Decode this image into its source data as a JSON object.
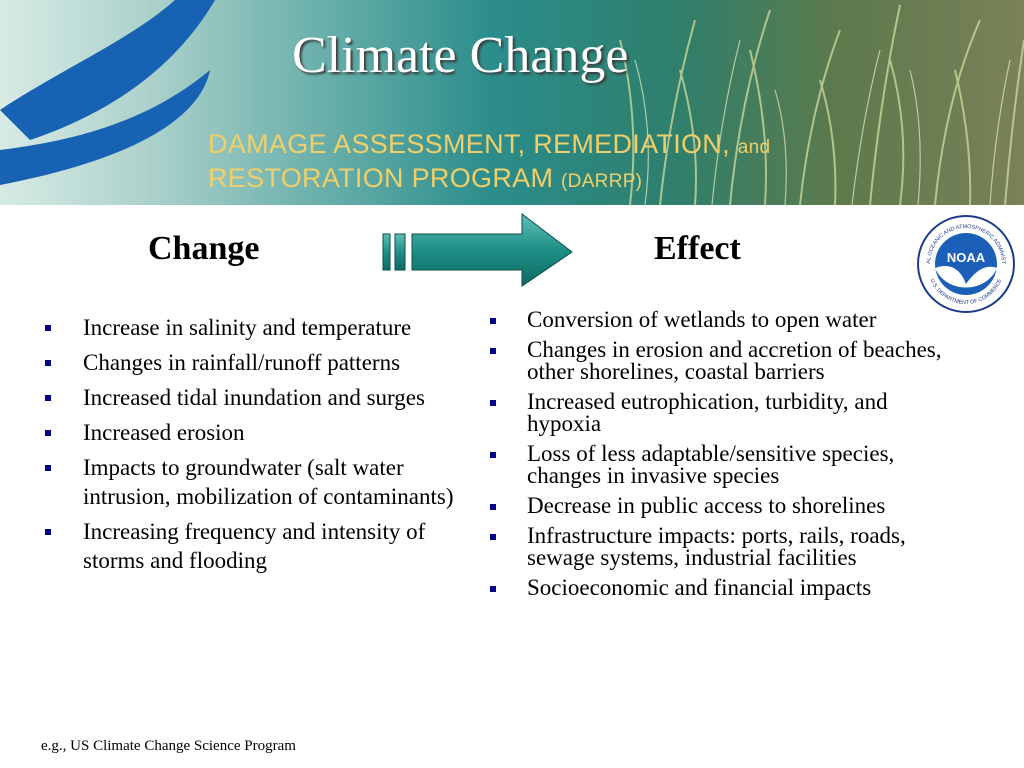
{
  "title": "Climate Change",
  "program": {
    "line1": "DAMAGE ASSESSMENT, REMEDIATION,",
    "line1_suffix": "and",
    "line2": "RESTORATION PROGRAM",
    "line2_suffix": "(DARRP)"
  },
  "colors": {
    "accent_teal": "#1e8f86",
    "program_text": "#f0cf6a",
    "bullet": "#00008b"
  },
  "headings": {
    "change": "Change",
    "effect": "Effect"
  },
  "logo": {
    "center_text": "NOAA",
    "ring_top": "NATIONAL OCEANIC AND ATMOSPHERIC ADMINISTRATION",
    "ring_bottom": "U.S. DEPARTMENT OF COMMERCE"
  },
  "change_items": [
    "Increase in salinity and temperature",
    "Changes in rainfall/runoff patterns",
    "Increased tidal inundation and surges",
    "Increased erosion",
    "Impacts to groundwater (salt water intrusion, mobilization of contaminants)",
    "Increasing frequency and intensity of storms and flooding"
  ],
  "effect_items": [
    "Conversion of wetlands to open water",
    "Changes in erosion and accretion of beaches, other shorelines, coastal barriers",
    "Increased eutrophication, turbidity, and hypoxia",
    "Loss of less adaptable/sensitive species, changes in invasive species",
    "Decrease in public access to shorelines",
    "Infrastructure impacts: ports, rails, roads, sewage systems, industrial facilities",
    "Socioeconomic and financial impacts"
  ],
  "footnote": "e.g., US Climate Change Science Program"
}
